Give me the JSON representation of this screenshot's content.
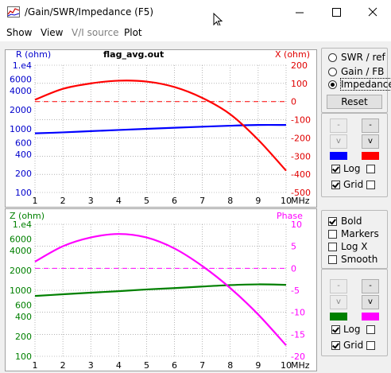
{
  "window": {
    "title": "/Gain/SWR/Impedance (F5)",
    "icon": "chart-icon"
  },
  "menu": [
    "Show",
    "View",
    "V/I source",
    "Plot"
  ],
  "menu_disabled": [
    false,
    false,
    true,
    false
  ],
  "colors": {
    "top_left_curve": "#0000ff",
    "top_right_curve": "#ff0000",
    "bottom_left_curve": "#008000",
    "bottom_right_curve": "#ff00ff",
    "grid": "#888888"
  },
  "top_plot": {
    "title": "flag_avg.out",
    "left_axis_label": "R (ohm)",
    "right_axis_label": "X (ohm)",
    "left_ticks": [
      "1.e4",
      "6000",
      "4000",
      "2000",
      "1000",
      "600",
      "400",
      "200",
      "100"
    ],
    "right_ticks": [
      "200",
      "100",
      "0",
      "-100",
      "-200",
      "-300",
      "-400",
      "-500"
    ],
    "x_ticks": [
      "1",
      "2",
      "3",
      "4",
      "5",
      "6",
      "7",
      "8",
      "9",
      "10"
    ],
    "x_unit": "MHz"
  },
  "bottom_plot": {
    "left_axis_label": "Z (ohm)",
    "right_axis_label": "Phase",
    "left_ticks": [
      "1.e4",
      "6000",
      "4000",
      "2000",
      "1000",
      "600",
      "400",
      "200",
      "100"
    ],
    "right_ticks": [
      "10",
      "5",
      "0",
      "-5",
      "-10",
      "-15",
      "-20"
    ],
    "x_ticks": [
      "1",
      "2",
      "3",
      "4",
      "5",
      "6",
      "7",
      "8",
      "9",
      "10"
    ],
    "x_unit": "MHz"
  },
  "mode": {
    "options": [
      "SWR / ref",
      "Gain / FB",
      "Impedance"
    ],
    "selected": "Impedance",
    "reset_label": "Reset"
  },
  "top_controls": {
    "up_label": "-",
    "down_label": "v",
    "log_label": "Log",
    "grid_label": "Grid",
    "log_left": true,
    "log_right": false,
    "grid_left": true,
    "grid_right": false
  },
  "options": {
    "bold_label": "Bold",
    "bold": true,
    "markers_label": "Markers",
    "markers": false,
    "logx_label": "Log X",
    "logx": false,
    "smooth_label": "Smooth",
    "smooth": false
  },
  "bottom_controls": {
    "up_label": "-",
    "down_label": "v",
    "log_label": "Log",
    "grid_label": "Grid",
    "log_left": true,
    "log_right": false,
    "grid_left": true,
    "grid_right": false
  },
  "chart_data": [
    {
      "type": "line",
      "title": "flag_avg.out",
      "x": [
        1,
        2,
        3,
        4,
        5,
        6,
        7,
        8,
        9,
        10
      ],
      "xlabel": "MHz",
      "xlim": [
        1,
        10
      ],
      "y_left": {
        "label": "R (ohm)",
        "scale": "log",
        "lim": [
          100,
          10000
        ]
      },
      "y_right": {
        "label": "X (ohm)",
        "lim": [
          -500,
          200
        ]
      },
      "series": [
        {
          "axis": "left",
          "values": [
            850,
            880,
            920,
            960,
            1000,
            1040,
            1080,
            1120,
            1150,
            1150
          ]
        },
        {
          "axis": "right",
          "values": [
            10,
            70,
            100,
            115,
            110,
            80,
            20,
            -70,
            -210,
            -380
          ]
        }
      ],
      "grid": true
    },
    {
      "type": "line",
      "x": [
        1,
        2,
        3,
        4,
        5,
        6,
        7,
        8,
        9,
        10
      ],
      "xlabel": "MHz",
      "xlim": [
        1,
        10
      ],
      "y_left": {
        "label": "Z (ohm)",
        "scale": "log",
        "lim": [
          100,
          10000
        ]
      },
      "y_right": {
        "label": "Phase",
        "lim": [
          -20,
          10
        ]
      },
      "series": [
        {
          "axis": "left",
          "values": [
            820,
            870,
            920,
            970,
            1030,
            1080,
            1140,
            1200,
            1230,
            1210
          ]
        },
        {
          "axis": "right",
          "values": [
            1.5,
            5,
            7,
            7.8,
            7,
            4.5,
            0.5,
            -4.5,
            -10.5,
            -17.5
          ]
        }
      ],
      "grid": true
    }
  ]
}
